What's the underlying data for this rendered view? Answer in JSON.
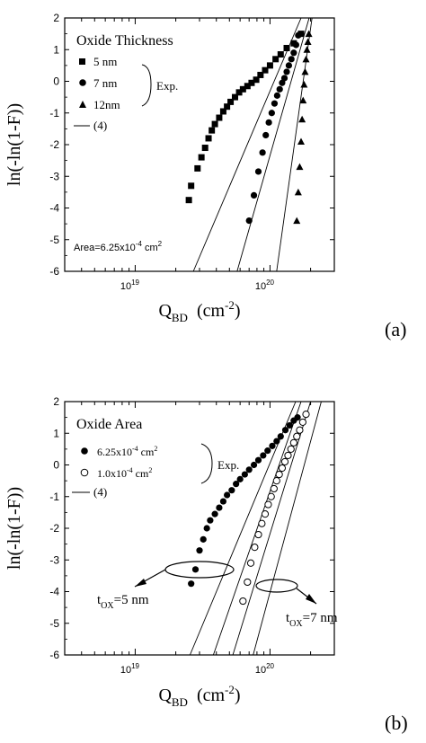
{
  "chart_data": [
    {
      "type": "scatter",
      "panel_label": "(a)",
      "title": "",
      "ylabel": "ln(-ln(1-F))",
      "xlabel_main": "Q",
      "xlabel_sub": "BD",
      "xlabel_unit": "(cm",
      "xlabel_exp": "-2",
      "xlabel_close": ")",
      "xscale": "log",
      "xlim": [
        3e+18,
        3e+20
      ],
      "ylim": [
        -6,
        2
      ],
      "yticks": [
        "-6",
        "-5",
        "-4",
        "-3",
        "-2",
        "-1",
        "0",
        "1",
        "2"
      ],
      "xtick_labels": [
        {
          "value": 1e+19,
          "base": "10",
          "exp": "19"
        },
        {
          "value": 1e+20,
          "base": "10",
          "exp": "20"
        }
      ],
      "legend_title": "Oxide Thickness",
      "legend_exp_label": "Exp.",
      "annotation": {
        "prefix": "Area=6.25x10",
        "exp": "-4",
        "suffix": " cm",
        "exp2": "2"
      },
      "series": [
        {
          "name": "5 nm",
          "marker": "square",
          "x": [
            2.5e+19,
            2.6e+19,
            2.9e+19,
            3.1e+19,
            3.3e+19,
            3.5e+19,
            3.7e+19,
            3.9e+19,
            4.2e+19,
            4.5e+19,
            4.8e+19,
            5.1e+19,
            5.5e+19,
            5.9e+19,
            6.3e+19,
            6.8e+19,
            7.3e+19,
            7.9e+19,
            8.5e+19,
            9.2e+19,
            1e+20,
            1.1e+20,
            1.2e+20,
            1.33e+20,
            1.5e+20,
            1.7e+20
          ],
          "y": [
            -3.75,
            -3.3,
            -2.75,
            -2.4,
            -2.1,
            -1.8,
            -1.55,
            -1.35,
            -1.15,
            -0.95,
            -0.8,
            -0.65,
            -0.5,
            -0.35,
            -0.25,
            -0.15,
            -0.05,
            0.05,
            0.2,
            0.35,
            0.5,
            0.7,
            0.85,
            1.05,
            1.2,
            1.5
          ]
        },
        {
          "name": "7 nm",
          "marker": "circle",
          "x": [
            7e+19,
            7.6e+19,
            8.2e+19,
            8.8e+19,
            9.3e+19,
            9.8e+19,
            1.03e+20,
            1.08e+20,
            1.13e+20,
            1.18e+20,
            1.23e+20,
            1.28e+20,
            1.33e+20,
            1.38e+20,
            1.44e+20,
            1.5e+20,
            1.56e+20,
            1.62e+20
          ],
          "y": [
            -4.4,
            -3.6,
            -2.85,
            -2.25,
            -1.7,
            -1.3,
            -1.0,
            -0.7,
            -0.45,
            -0.25,
            -0.05,
            0.1,
            0.3,
            0.5,
            0.7,
            0.9,
            1.15,
            1.45
          ]
        },
        {
          "name": "12nm",
          "marker": "triangle",
          "x": [
            1.58e+20,
            1.62e+20,
            1.66e+20,
            1.7e+20,
            1.73e+20,
            1.76e+20,
            1.79e+20,
            1.82e+20,
            1.85e+20,
            1.88e+20,
            1.91e+20,
            1.94e+20
          ],
          "y": [
            -4.4,
            -3.5,
            -2.7,
            -1.9,
            -1.2,
            -0.6,
            -0.1,
            0.3,
            0.7,
            1.0,
            1.25,
            1.5
          ]
        },
        {
          "name": "(4)",
          "marker": "line",
          "lines": [
            {
              "x": [
                2.7e+19,
                1.7e+20
              ],
              "y": [
                -6,
                2
              ]
            },
            {
              "x": [
                5.7e+19,
                1.95e+20
              ],
              "y": [
                -6,
                2
              ]
            },
            {
              "x": [
                1.12e+20,
                2.05e+20
              ],
              "y": [
                -6,
                2
              ]
            }
          ]
        }
      ]
    },
    {
      "type": "scatter",
      "panel_label": "(b)",
      "title": "",
      "ylabel": "ln(-ln(1-F))",
      "xlabel_main": "Q",
      "xlabel_sub": "BD",
      "xlabel_unit": "(cm",
      "xlabel_exp": "-2",
      "xlabel_close": ")",
      "xscale": "log",
      "xlim": [
        3e+18,
        3e+20
      ],
      "ylim": [
        -6,
        2
      ],
      "yticks": [
        "-6",
        "-5",
        "-4",
        "-3",
        "-2",
        "-1",
        "0",
        "1",
        "2"
      ],
      "xtick_labels": [
        {
          "value": 1e+19,
          "base": "10",
          "exp": "19"
        },
        {
          "value": 1e+20,
          "base": "10",
          "exp": "20"
        }
      ],
      "legend_title": "Oxide Area",
      "legend_exp_label": "Exp.",
      "annotations": [
        {
          "prefix": "t",
          "sub": "OX",
          "suffix": "=5 nm"
        },
        {
          "prefix": "t",
          "sub": "OX",
          "suffix": "=7 nm"
        }
      ],
      "series": [
        {
          "name": "6.25x10",
          "name_exp": "-4",
          "name_unit": " cm",
          "name_exp2": "2",
          "marker": "circle",
          "x": [
            2.6e+19,
            2.8e+19,
            3e+19,
            3.2e+19,
            3.4e+19,
            3.6e+19,
            3.9e+19,
            4.2e+19,
            4.5e+19,
            4.8e+19,
            5.2e+19,
            5.6e+19,
            6e+19,
            6.5e+19,
            7e+19,
            7.6e+19,
            8.2e+19,
            8.9e+19,
            9.6e+19,
            1.04e+20,
            1.12e+20,
            1.2e+20,
            1.3e+20,
            1.4e+20,
            1.5e+20,
            1.6e+20
          ],
          "y": [
            -3.75,
            -3.3,
            -2.7,
            -2.35,
            -2.0,
            -1.75,
            -1.55,
            -1.35,
            -1.15,
            -0.95,
            -0.8,
            -0.6,
            -0.45,
            -0.3,
            -0.15,
            0.0,
            0.15,
            0.3,
            0.45,
            0.6,
            0.75,
            0.9,
            1.1,
            1.25,
            1.4,
            1.5
          ]
        },
        {
          "name": "1.0x10",
          "name_exp": "-4",
          "name_unit": " cm",
          "name_exp2": "2",
          "marker": "circle-open",
          "x": [
            6.3e+19,
            6.8e+19,
            7.2e+19,
            7.7e+19,
            8.2e+19,
            8.7e+19,
            9.2e+19,
            9.7e+19,
            1.02e+20,
            1.07e+20,
            1.12e+20,
            1.17e+20,
            1.23e+20,
            1.29e+20,
            1.36e+20,
            1.43e+20,
            1.5e+20,
            1.58e+20,
            1.66e+20,
            1.75e+20,
            1.85e+20
          ],
          "y": [
            -4.3,
            -3.7,
            -3.1,
            -2.6,
            -2.2,
            -1.85,
            -1.55,
            -1.25,
            -1.0,
            -0.75,
            -0.5,
            -0.3,
            -0.1,
            0.1,
            0.3,
            0.5,
            0.7,
            0.9,
            1.1,
            1.35,
            1.6
          ]
        },
        {
          "name": "(4)",
          "marker": "line",
          "lines": [
            {
              "x": [
                2.55e+19,
                1.55e+20
              ],
              "y": [
                -6,
                2
              ]
            },
            {
              "x": [
                3.8e+19,
                1.7e+20
              ],
              "y": [
                -6,
                2
              ]
            },
            {
              "x": [
                5.3e+19,
                2e+20
              ],
              "y": [
                -6,
                2
              ]
            },
            {
              "x": [
                7.5e+19,
                2.4e+20
              ],
              "y": [
                -6,
                2
              ]
            }
          ]
        }
      ]
    }
  ]
}
